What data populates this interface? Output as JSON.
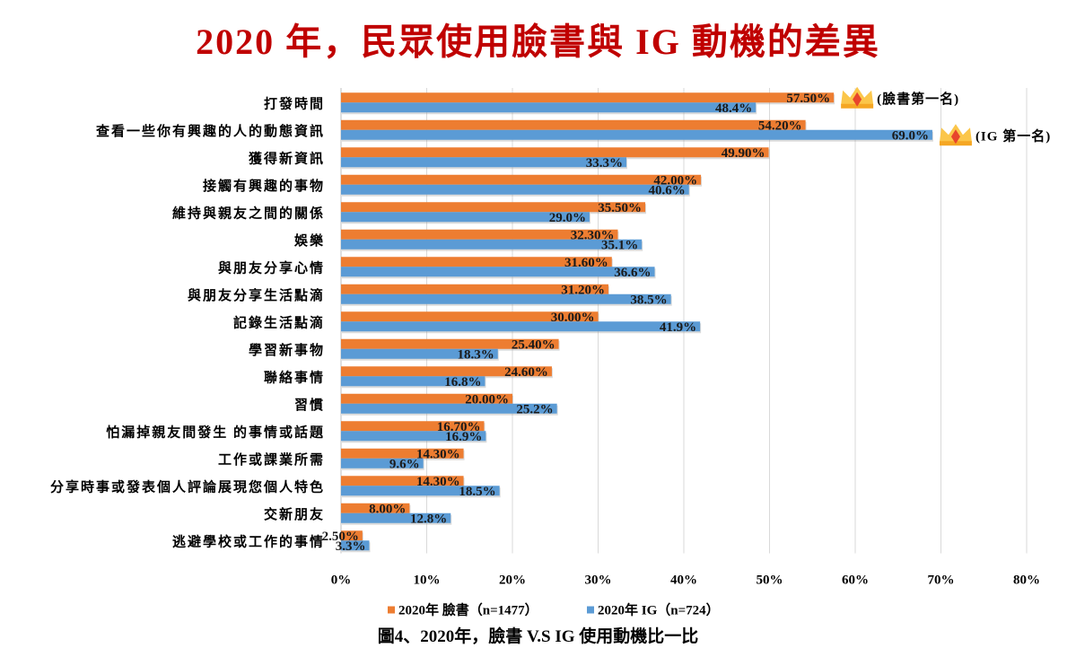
{
  "chart_data": {
    "type": "bar",
    "orientation": "horizontal",
    "title": "2020 年，民眾使用臉書與 IG 動機的差異",
    "caption": "圖4、2020年，臉書 V.S IG 使用動機比一比",
    "categories": [
      "打發時間",
      "查看一些你有興趣的人的動態資訊",
      "獲得新資訊",
      "接觸有興趣的事物",
      "維持與親友之間的關係",
      "娛樂",
      "與朋友分享心情",
      "與朋友分享生活點滴",
      "記錄生活點滴",
      "學習新事物",
      "聯絡事情",
      "習慣",
      "怕漏掉親友間發生 的事情或話題",
      "工作或課業所需",
      "分享時事或發表個人評論展現您個人特色",
      "交新朋友",
      "逃避學校或工作的事情"
    ],
    "series": [
      {
        "name": "2020年 臉書（n=1477）",
        "color": "#ed7d31",
        "values": [
          57.5,
          54.2,
          49.9,
          42.0,
          35.5,
          32.3,
          31.6,
          31.2,
          30.0,
          25.4,
          24.6,
          20.0,
          16.7,
          14.3,
          14.3,
          8.0,
          2.5
        ],
        "labels": [
          "57.50%",
          "54.20%",
          "49.90%",
          "42.00%",
          "35.50%",
          "32.30%",
          "31.60%",
          "31.20%",
          "30.00%",
          "25.40%",
          "24.60%",
          "20.00%",
          "16.70%",
          "14.30%",
          "14.30%",
          "8.00%",
          "2.50%"
        ]
      },
      {
        "name": "2020年 IG（n=724）",
        "color": "#5b9bd5",
        "values": [
          48.4,
          69.0,
          33.3,
          40.6,
          29.0,
          35.1,
          36.6,
          38.5,
          41.9,
          18.3,
          16.8,
          25.2,
          16.9,
          9.6,
          18.5,
          12.8,
          3.3
        ],
        "labels": [
          "48.4%",
          "69.0%",
          "33.3%",
          "40.6%",
          "29.0%",
          "35.1%",
          "36.6%",
          "38.5%",
          "41.9%",
          "18.3%",
          "16.8%",
          "25.2%",
          "16.9%",
          "9.6%",
          "18.5%",
          "12.8%",
          "3.3%"
        ]
      }
    ],
    "xlim": [
      0,
      80
    ],
    "xticks": [
      "0%",
      "10%",
      "20%",
      "30%",
      "40%",
      "50%",
      "60%",
      "70%",
      "80%"
    ],
    "grid": true,
    "legend": "bottom",
    "annotations": [
      {
        "text": "(臉書第一名)",
        "category_index": 0,
        "series": 0,
        "icon": "crown-icon"
      },
      {
        "text": "(IG 第一名)",
        "category_index": 1,
        "series": 1,
        "icon": "crown-icon"
      }
    ]
  }
}
